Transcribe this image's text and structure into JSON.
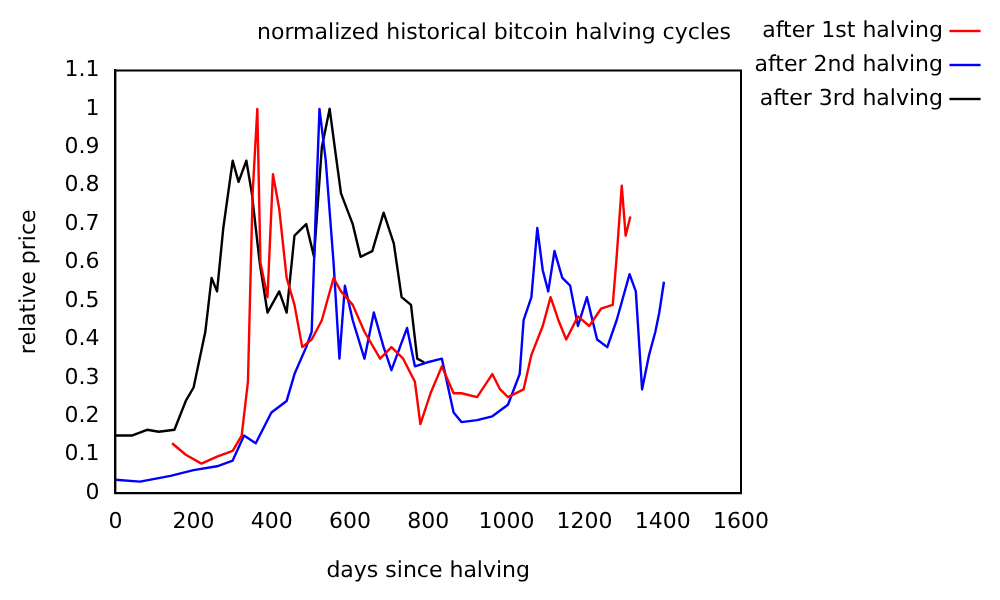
{
  "chart_data": {
    "type": "line",
    "title": "normalized historical bitcoin halving cycles",
    "xlabel": "days since halving",
    "ylabel": "relative price",
    "xlim": [
      0,
      1600
    ],
    "xticks": [
      0,
      200,
      400,
      600,
      800,
      1000,
      1200,
      1400,
      1600
    ],
    "ylim": [
      0,
      1.1
    ],
    "yticks": [
      0,
      0.1,
      0.2,
      0.3,
      0.4,
      0.5,
      0.6,
      0.7,
      0.8,
      0.9,
      1,
      1.1
    ],
    "grid": false,
    "legend": "top right",
    "marker": "none",
    "line_style": "solid",
    "series": [
      {
        "name": "after 1st halving",
        "color": "#ff0000",
        "x": [
          145,
          180,
          220,
          260,
          300,
          323,
          339,
          351,
          363,
          371,
          389,
          403,
          419,
          438,
          458,
          478,
          502,
          528,
          558,
          577,
          607,
          637,
          677,
          706,
          736,
          766,
          780,
          806,
          835,
          865,
          885,
          925,
          964,
          984,
          1004,
          1044,
          1064,
          1093,
          1113,
          1133,
          1153,
          1183,
          1212,
          1242,
          1272,
          1282,
          1295,
          1305,
          1317
        ],
        "values": [
          0.13,
          0.1,
          0.077,
          0.095,
          0.11,
          0.15,
          0.29,
          0.78,
          1.0,
          0.6,
          0.51,
          0.83,
          0.74,
          0.56,
          0.49,
          0.38,
          0.4,
          0.45,
          0.56,
          0.525,
          0.49,
          0.42,
          0.35,
          0.38,
          0.35,
          0.29,
          0.18,
          0.26,
          0.33,
          0.26,
          0.26,
          0.25,
          0.31,
          0.27,
          0.25,
          0.27,
          0.36,
          0.435,
          0.51,
          0.45,
          0.4,
          0.46,
          0.435,
          0.48,
          0.49,
          0.615,
          0.8,
          0.67,
          0.72
        ]
      },
      {
        "name": "after 2nd halving",
        "color": "#0000ff",
        "x": [
          0,
          63,
          141,
          200,
          260,
          300,
          329,
          359,
          399,
          438,
          458,
          488,
          502,
          514,
          522,
          538,
          558,
          573,
          587,
          607,
          637,
          661,
          686,
          706,
          746,
          766,
          796,
          835,
          865,
          885,
          925,
          964,
          1004,
          1034,
          1044,
          1064,
          1079,
          1093,
          1107,
          1123,
          1143,
          1163,
          1183,
          1206,
          1232,
          1258,
          1282,
          1315,
          1331,
          1347,
          1365,
          1381,
          1391,
          1403
        ],
        "values": [
          0.035,
          0.03,
          0.045,
          0.06,
          0.07,
          0.085,
          0.15,
          0.13,
          0.21,
          0.24,
          0.31,
          0.38,
          0.42,
          0.78,
          1.0,
          0.865,
          0.6,
          0.35,
          0.54,
          0.45,
          0.35,
          0.47,
          0.38,
          0.32,
          0.43,
          0.33,
          0.34,
          0.35,
          0.21,
          0.185,
          0.19,
          0.2,
          0.23,
          0.31,
          0.45,
          0.51,
          0.69,
          0.58,
          0.525,
          0.63,
          0.56,
          0.54,
          0.435,
          0.51,
          0.4,
          0.38,
          0.45,
          0.57,
          0.525,
          0.27,
          0.36,
          0.42,
          0.47,
          0.55
        ]
      },
      {
        "name": "after 3rd halving",
        "color": "#000000",
        "x": [
          0,
          42,
          81,
          111,
          151,
          180,
          200,
          230,
          246,
          260,
          276,
          300,
          315,
          335,
          349,
          369,
          389,
          419,
          438,
          458,
          488,
          508,
          528,
          548,
          561,
          577,
          607,
          627,
          657,
          686,
          712,
          732,
          756,
          772,
          790
        ],
        "values": [
          0.15,
          0.15,
          0.165,
          0.16,
          0.165,
          0.24,
          0.275,
          0.42,
          0.56,
          0.525,
          0.69,
          0.865,
          0.81,
          0.865,
          0.78,
          0.6,
          0.47,
          0.525,
          0.47,
          0.67,
          0.7,
          0.615,
          0.9,
          1.0,
          0.9,
          0.78,
          0.7,
          0.615,
          0.63,
          0.73,
          0.65,
          0.51,
          0.49,
          0.35,
          0.34
        ]
      }
    ]
  }
}
